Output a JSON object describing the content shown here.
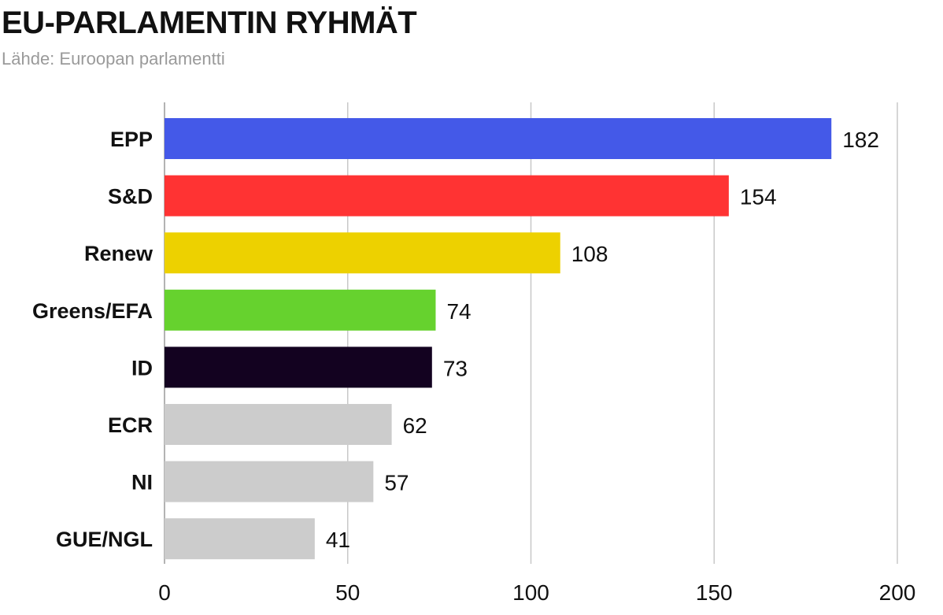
{
  "header": {
    "title": "EU-PARLAMENTIN RYHMÄT",
    "source": "Lähde: Euroopan parlamentti"
  },
  "chart_data": {
    "type": "bar",
    "orientation": "horizontal",
    "title": "EU-PARLAMENTIN RYHMÄT",
    "subtitle": "Lähde: Euroopan parlamentti",
    "categories": [
      "EPP",
      "S&D",
      "Renew",
      "Greens/EFA",
      "ID",
      "ECR",
      "NI",
      "GUE/NGL"
    ],
    "values": [
      182,
      154,
      108,
      74,
      73,
      62,
      57,
      41
    ],
    "colors": [
      "#4459e8",
      "#ff3333",
      "#edd100",
      "#66d22e",
      "#130220",
      "#cccccc",
      "#cccccc",
      "#cccccc"
    ],
    "xlim": [
      0,
      200
    ],
    "xticks": [
      0,
      50,
      100,
      150,
      200
    ],
    "xlabel": "",
    "ylabel": "",
    "grid": "vertical",
    "data_labels": true,
    "legend": "none"
  }
}
